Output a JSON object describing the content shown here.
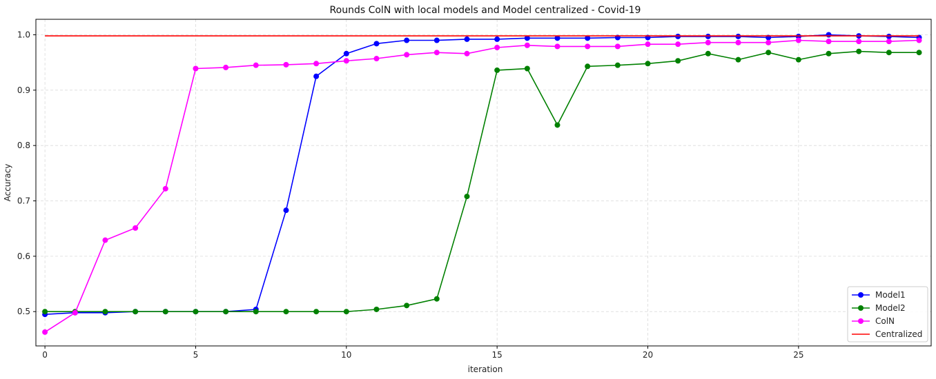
{
  "chart_data": {
    "type": "line",
    "title": "Rounds ColN with local models and Model centralized - Covid-19",
    "xlabel": "iteration",
    "ylabel": "Accuracy",
    "xlim": [
      -0.3,
      29.4
    ],
    "ylim": [
      0.438,
      1.028
    ],
    "xticks": [
      0,
      5,
      10,
      15,
      20,
      25
    ],
    "yticks": [
      0.5,
      0.6,
      0.7,
      0.8,
      0.9,
      1.0
    ],
    "ytick_labels": [
      "0.5",
      "0.6",
      "0.7",
      "0.8",
      "0.9",
      "1.0"
    ],
    "grid": true,
    "legend_position": "lower-right",
    "x": [
      0,
      1,
      2,
      3,
      4,
      5,
      6,
      7,
      8,
      9,
      10,
      11,
      12,
      13,
      14,
      15,
      16,
      17,
      18,
      19,
      20,
      21,
      22,
      23,
      24,
      25,
      26,
      27,
      28,
      29
    ],
    "series": [
      {
        "name": "Model1",
        "color": "#0000ff",
        "marker": true,
        "values": [
          0.495,
          0.498,
          0.498,
          0.5,
          0.5,
          0.5,
          0.5,
          0.504,
          0.683,
          0.925,
          0.966,
          0.984,
          0.99,
          0.99,
          0.992,
          0.992,
          0.994,
          0.994,
          0.994,
          0.995,
          0.995,
          0.997,
          0.997,
          0.997,
          0.995,
          0.997,
          1.0,
          0.998,
          0.997,
          0.995
        ]
      },
      {
        "name": "Model2",
        "color": "#008000",
        "marker": true,
        "values": [
          0.5,
          0.5,
          0.5,
          0.5,
          0.5,
          0.5,
          0.5,
          0.5,
          0.5,
          0.5,
          0.5,
          0.504,
          0.511,
          0.523,
          0.708,
          0.936,
          0.939,
          0.837,
          0.943,
          0.945,
          0.948,
          0.953,
          0.966,
          0.955,
          0.968,
          0.955,
          0.966,
          0.97,
          0.968,
          0.968
        ]
      },
      {
        "name": "ColN",
        "color": "#ff00ff",
        "marker": true,
        "values": [
          0.463,
          0.498,
          0.629,
          0.651,
          0.722,
          0.939,
          0.941,
          0.945,
          0.946,
          0.948,
          0.953,
          0.957,
          0.964,
          0.968,
          0.966,
          0.977,
          0.981,
          0.979,
          0.979,
          0.979,
          0.983,
          0.983,
          0.986,
          0.986,
          0.986,
          0.99,
          0.988,
          0.988,
          0.988,
          0.99
        ]
      },
      {
        "name": "Centralized",
        "color": "#ff0000",
        "marker": false,
        "values": [
          0.998,
          0.998,
          0.998,
          0.998,
          0.998,
          0.998,
          0.998,
          0.998,
          0.998,
          0.998,
          0.998,
          0.998,
          0.998,
          0.998,
          0.998,
          0.998,
          0.998,
          0.998,
          0.998,
          0.998,
          0.998,
          0.998,
          0.998,
          0.998,
          0.998,
          0.998,
          0.998,
          0.998,
          0.998,
          0.998
        ]
      }
    ]
  }
}
